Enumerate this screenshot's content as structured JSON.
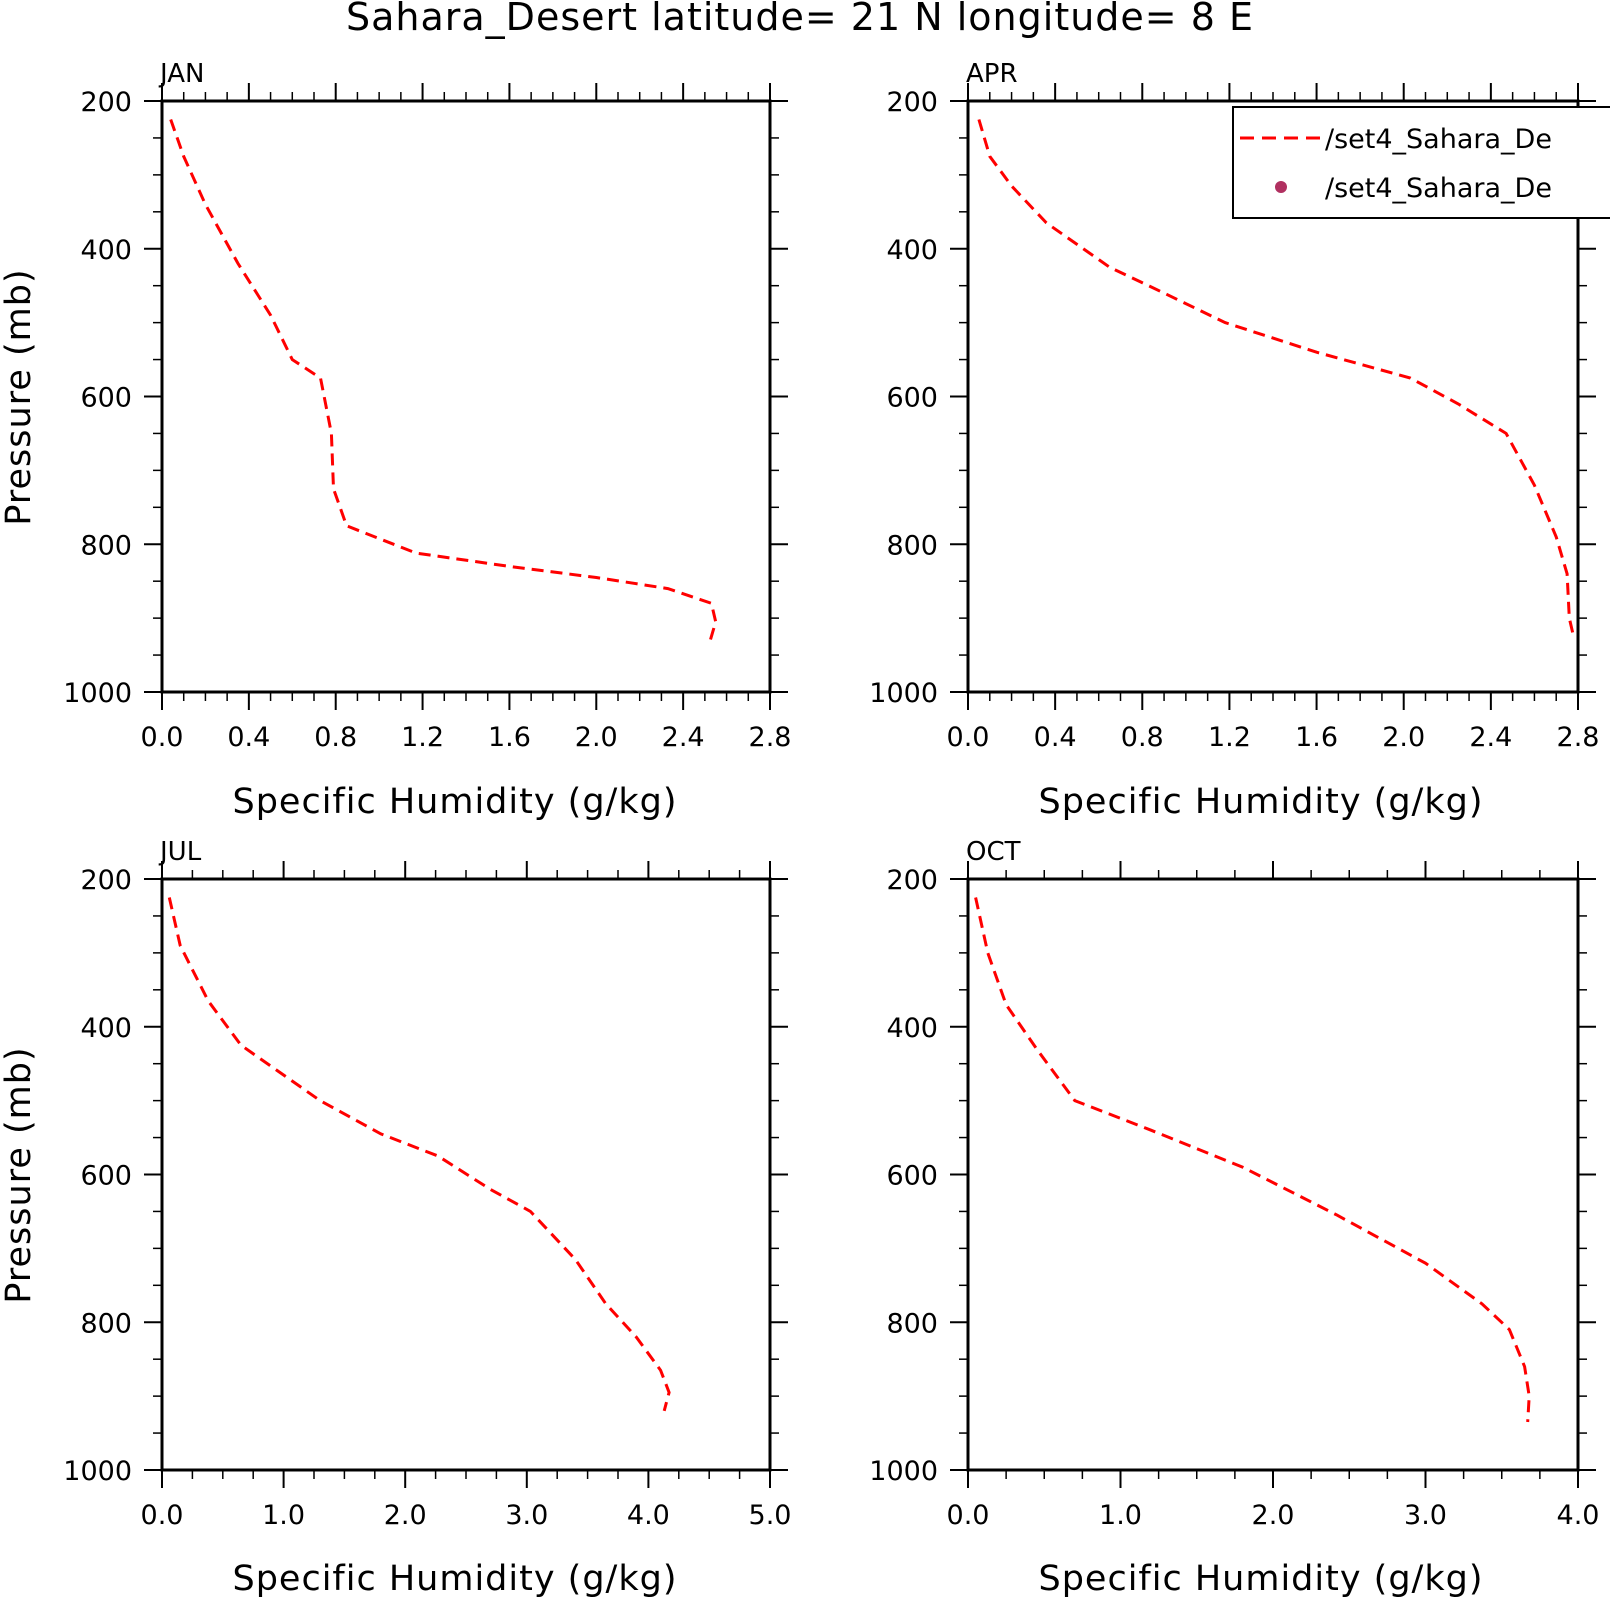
{
  "title": "Sahara_Desert  latitude= 21 N longitude= 8 E",
  "colors": {
    "model_line": "#ff0000",
    "obs_marker": "#b03060",
    "axes": "#000000"
  },
  "legend": {
    "items": [
      {
        "label": "/set4_Sahara_De",
        "style": "dashed-line"
      },
      {
        "label": "/set4_Sahara_De",
        "style": "dot"
      }
    ]
  },
  "chart_data": [
    {
      "type": "line",
      "panel_label": "JAN",
      "xlabel": "Specific Humidity (g/kg)",
      "ylabel": "Pressure (mb)",
      "xlim": [
        0.0,
        2.8
      ],
      "ylim": [
        200,
        1000
      ],
      "y_inverted": true,
      "x_ticks": [
        "0.0",
        "0.4",
        "0.8",
        "1.2",
        "1.6",
        "2.0",
        "2.4",
        "2.8"
      ],
      "y_ticks": [
        "200",
        "400",
        "600",
        "800",
        "1000"
      ],
      "series": [
        {
          "style": "dashed",
          "x": [
            0.04,
            0.1,
            0.2,
            0.35,
            0.5,
            0.6,
            0.73,
            0.78,
            0.79,
            0.85,
            1.17,
            1.6,
            2.0,
            2.33,
            2.53,
            2.55,
            2.52
          ],
          "y": [
            225,
            275,
            340,
            420,
            490,
            550,
            575,
            650,
            725,
            775,
            812,
            830,
            845,
            860,
            880,
            905,
            935
          ]
        }
      ]
    },
    {
      "type": "line",
      "panel_label": "APR",
      "xlabel": "Specific Humidity (g/kg)",
      "ylabel": "",
      "xlim": [
        0.0,
        2.8
      ],
      "ylim": [
        200,
        1000
      ],
      "y_inverted": true,
      "x_ticks": [
        "0.0",
        "0.4",
        "0.8",
        "1.2",
        "1.6",
        "2.0",
        "2.4",
        "2.8"
      ],
      "y_ticks": [
        "200",
        "400",
        "600",
        "800",
        "1000"
      ],
      "series": [
        {
          "style": "dashed",
          "x": [
            0.05,
            0.1,
            0.2,
            0.36,
            0.65,
            0.9,
            1.18,
            1.6,
            2.03,
            2.25,
            2.47,
            2.6,
            2.7,
            2.75,
            2.76,
            2.78
          ],
          "y": [
            225,
            275,
            315,
            365,
            425,
            460,
            500,
            540,
            575,
            610,
            650,
            720,
            790,
            840,
            900,
            925
          ]
        }
      ]
    },
    {
      "type": "line",
      "panel_label": "JUL",
      "xlabel": "Specific Humidity (g/kg)",
      "ylabel": "Pressure (mb)",
      "xlim": [
        0.0,
        5.0
      ],
      "ylim": [
        200,
        1000
      ],
      "y_inverted": true,
      "x_ticks": [
        "0.0",
        "1.0",
        "2.0",
        "3.0",
        "4.0",
        "5.0"
      ],
      "y_ticks": [
        "200",
        "400",
        "600",
        "800",
        "1000"
      ],
      "series": [
        {
          "style": "dashed",
          "x": [
            0.06,
            0.15,
            0.38,
            0.65,
            1.3,
            1.8,
            2.27,
            2.7,
            3.03,
            3.4,
            3.65,
            3.9,
            4.1,
            4.17,
            4.13
          ],
          "y": [
            225,
            290,
            365,
            425,
            500,
            545,
            575,
            620,
            650,
            715,
            775,
            820,
            865,
            895,
            920
          ]
        }
      ]
    },
    {
      "type": "line",
      "panel_label": "OCT",
      "xlabel": "Specific Humidity (g/kg)",
      "ylabel": "",
      "xlim": [
        0.0,
        4.0
      ],
      "ylim": [
        200,
        1000
      ],
      "y_inverted": true,
      "x_ticks": [
        "0.0",
        "1.0",
        "2.0",
        "3.0",
        "4.0"
      ],
      "y_ticks": [
        "200",
        "400",
        "600",
        "800",
        "1000"
      ],
      "series": [
        {
          "style": "dashed",
          "x": [
            0.05,
            0.13,
            0.25,
            0.45,
            0.7,
            1.2,
            1.8,
            2.42,
            3.0,
            3.37,
            3.55,
            3.65,
            3.68,
            3.67
          ],
          "y": [
            225,
            300,
            370,
            430,
            500,
            540,
            590,
            655,
            720,
            775,
            810,
            860,
            900,
            935
          ]
        }
      ]
    }
  ]
}
